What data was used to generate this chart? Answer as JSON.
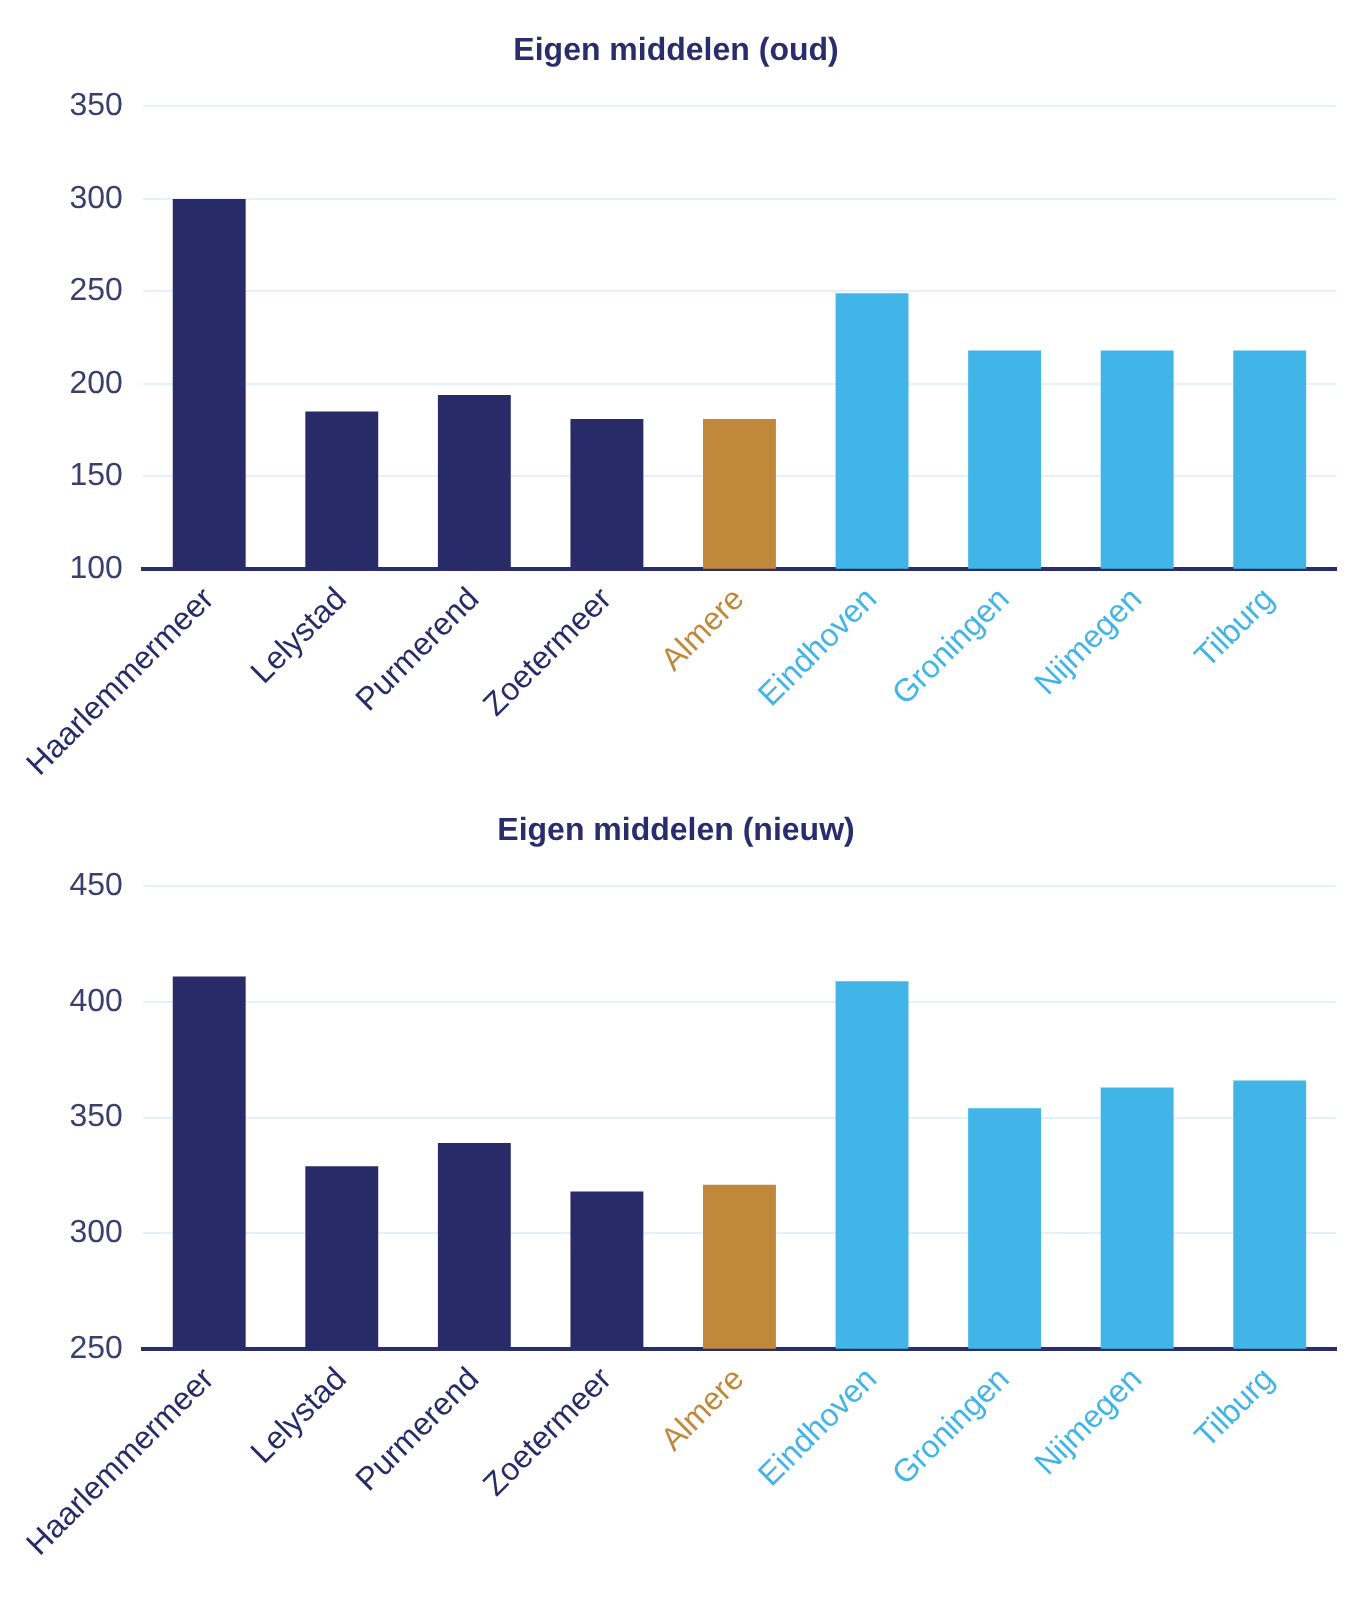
{
  "chart_data": [
    {
      "type": "bar",
      "title": "Eigen middelen (oud)",
      "categories": [
        "Haarlemmermeer",
        "Lelystad",
        "Purmerend",
        "Zoetermeer",
        "Almere",
        "Eindhoven",
        "Groningen",
        "Nijmegen",
        "Tilburg"
      ],
      "values": [
        300,
        185,
        194,
        181,
        181,
        249,
        218,
        218,
        218
      ],
      "colors": [
        "#292b69",
        "#292b69",
        "#292b69",
        "#292b69",
        "#c0883a",
        "#41b4e8",
        "#41b4e8",
        "#41b4e8",
        "#41b4e8"
      ],
      "ylim": [
        100,
        350
      ],
      "yticks": [
        100,
        150,
        200,
        250,
        300,
        350
      ],
      "grid": "y"
    },
    {
      "type": "bar",
      "title": "Eigen middelen (nieuw)",
      "categories": [
        "Haarlemmermeer",
        "Lelystad",
        "Purmerend",
        "Zoetermeer",
        "Almere",
        "Eindhoven",
        "Groningen",
        "Nijmegen",
        "Tilburg"
      ],
      "values": [
        411,
        329,
        339,
        318,
        321,
        409,
        354,
        363,
        366
      ],
      "colors": [
        "#292b69",
        "#292b69",
        "#292b69",
        "#292b69",
        "#c0883a",
        "#41b4e8",
        "#41b4e8",
        "#41b4e8",
        "#41b4e8"
      ],
      "ylim": [
        250,
        450
      ],
      "yticks": [
        250,
        300,
        350,
        400,
        450
      ],
      "grid": "y"
    }
  ]
}
